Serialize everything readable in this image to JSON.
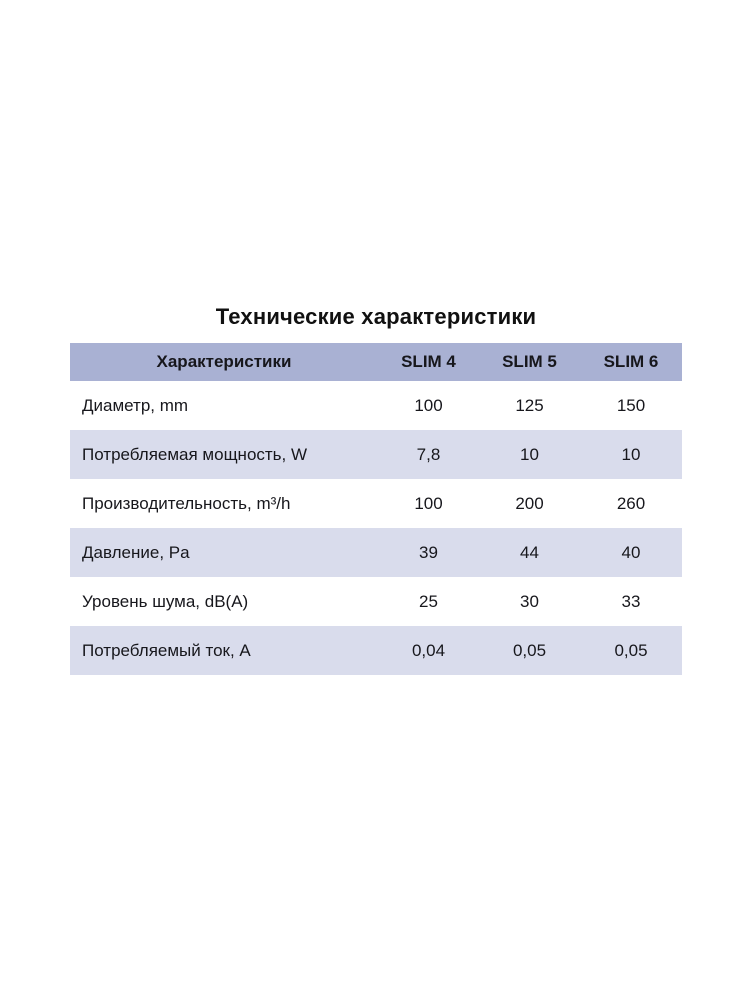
{
  "page": {
    "background": "#ffffff"
  },
  "title": "Технические характеристики",
  "table": {
    "colors": {
      "header_bg": "#a9b1d3",
      "stripe_bg": "#d9dcec",
      "text": "#17171c",
      "title": "#111111"
    },
    "columns": [
      "Характеристики",
      "SLIM 4",
      "SLIM 5",
      "SLIM 6"
    ],
    "rows": [
      {
        "label": "Диаметр, mm",
        "values": [
          "100",
          "125",
          "150"
        ]
      },
      {
        "label": "Потребляемая мощность, W",
        "values": [
          "7,8",
          "10",
          "10"
        ]
      },
      {
        "label": "Производительность, m³/h",
        "values": [
          "100",
          "200",
          "260"
        ]
      },
      {
        "label": "Давление, Pa",
        "values": [
          "39",
          "44",
          "40"
        ]
      },
      {
        "label": "Уровень шума, dB(A)",
        "values": [
          "25",
          "30",
          "33"
        ]
      },
      {
        "label": "Потребляемый ток, A",
        "values": [
          "0,04",
          "0,05",
          "0,05"
        ]
      }
    ]
  }
}
